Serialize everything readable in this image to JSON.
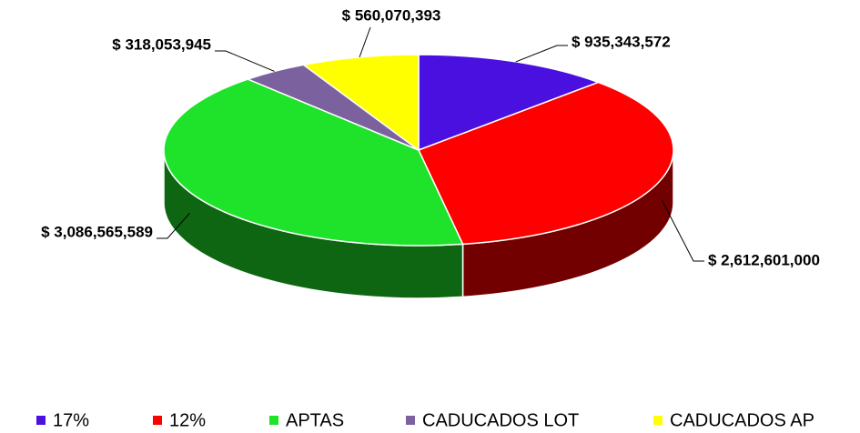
{
  "chart_data": {
    "type": "pie",
    "categories": [
      "17%",
      "12%",
      "APTAS",
      "CADUCADOS LOT",
      "CADUCADOS AP"
    ],
    "values": [
      935343572,
      2612601000,
      3086565589,
      318053945,
      560070393
    ],
    "value_labels": [
      "$ 935,343,572",
      "$ 2,612,601,000",
      "$ 3,086,565,589",
      "$ 318,053,945",
      "$ 560,070,393"
    ],
    "colors": [
      "#4a10e0",
      "#ff0000",
      "#1ee32a",
      "#7c619f",
      "#ffff00"
    ],
    "legend": "bottom"
  }
}
